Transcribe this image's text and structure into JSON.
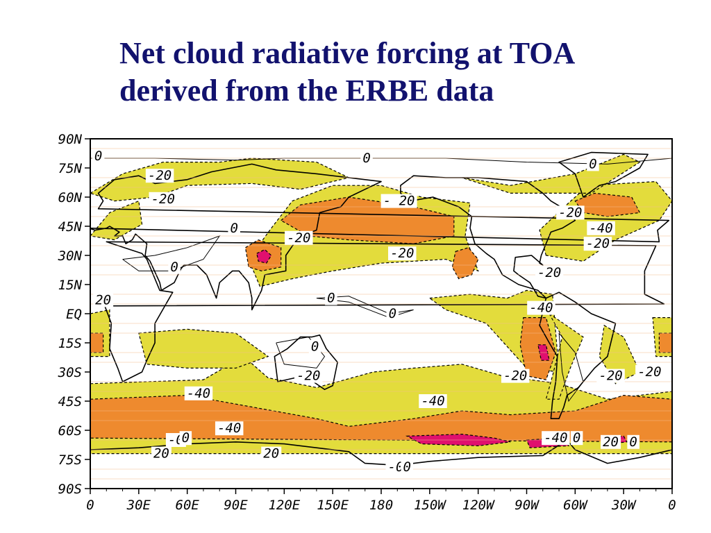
{
  "title": {
    "line1": "Net cloud radiative forcing at TOA",
    "line2": "derived from the ERBE data"
  },
  "colors": {
    "title": "#12126e",
    "fill_minus20": "#e3dc3c",
    "fill_minus40": "#ee8a2e",
    "fill_minus60": "#e0106e",
    "gridline": "#f4b98c"
  },
  "axes": {
    "y_ticks": [
      "90N",
      "75N",
      "60N",
      "45N",
      "30N",
      "15N",
      "EQ",
      "15S",
      "30S",
      "45S",
      "60S",
      "75S",
      "90S"
    ],
    "x_ticks": [
      "0",
      "30E",
      "60E",
      "90E",
      "120E",
      "150E",
      "180",
      "150W",
      "120W",
      "90W",
      "60W",
      "30W",
      "0"
    ]
  },
  "contour_labels": [
    {
      "text": "0",
      "lon": 5,
      "lat": 81
    },
    {
      "text": "0",
      "lon": 171,
      "lat": 80
    },
    {
      "text": "0",
      "lon": 311,
      "lat": 77
    },
    {
      "text": "-20",
      "lon": 43,
      "lat": 71
    },
    {
      "text": "-20",
      "lon": 45,
      "lat": 59
    },
    {
      "text": "- 20",
      "lon": 191,
      "lat": 58
    },
    {
      "text": "-20",
      "lon": 297,
      "lat": 52
    },
    {
      "text": "0",
      "lon": 89,
      "lat": 44
    },
    {
      "text": "-20",
      "lon": 129,
      "lat": 39
    },
    {
      "text": "-40",
      "lon": 316,
      "lat": 44
    },
    {
      "text": "-20",
      "lon": 314,
      "lat": 36
    },
    {
      "text": "-20",
      "lon": 193,
      "lat": 31
    },
    {
      "text": "0",
      "lon": 52,
      "lat": 24
    },
    {
      "text": "-20",
      "lon": 284,
      "lat": 21
    },
    {
      "text": "20",
      "lon": 8,
      "lat": 7
    },
    {
      "text": "0",
      "lon": 149,
      "lat": 8
    },
    {
      "text": "-40",
      "lon": 279,
      "lat": 3
    },
    {
      "text": "0",
      "lon": 187,
      "lat": 0
    },
    {
      "text": "0",
      "lon": 139,
      "lat": -17
    },
    {
      "text": "-20",
      "lon": 135,
      "lat": -32
    },
    {
      "text": "-20",
      "lon": 263,
      "lat": -32
    },
    {
      "text": "-20",
      "lon": 322,
      "lat": -32
    },
    {
      "text": "-20",
      "lon": 346,
      "lat": -30
    },
    {
      "text": "-40",
      "lon": 67,
      "lat": -41
    },
    {
      "text": "-40",
      "lon": 212,
      "lat": -45
    },
    {
      "text": "-40",
      "lon": 86,
      "lat": -59
    },
    {
      "text": "-0",
      "lon": 53,
      "lat": -65
    },
    {
      "text": "0",
      "lon": 59,
      "lat": -64
    },
    {
      "text": "-40",
      "lon": 288,
      "lat": -64
    },
    {
      "text": "0",
      "lon": 301,
      "lat": -64
    },
    {
      "text": "20",
      "lon": 322,
      "lat": -66
    },
    {
      "text": "0",
      "lon": 336,
      "lat": -66
    },
    {
      "text": "20",
      "lon": 44,
      "lat": -72
    },
    {
      "text": "20",
      "lon": 112,
      "lat": -72
    },
    {
      "text": "-0",
      "lon": 189,
      "lat": -79
    },
    {
      "text": "0",
      "lon": 196,
      "lat": -79
    }
  ]
}
